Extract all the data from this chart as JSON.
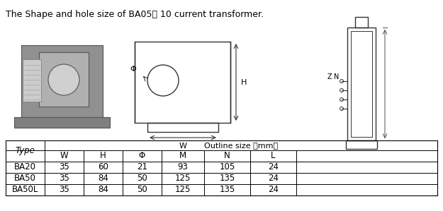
{
  "title": "The Shape and hole size of BA05， 10 current transformer.",
  "table_header_row1_label": "Type",
  "table_header_row1_right": "Outline size （mm）",
  "table_header_row2": [
    "W",
    "H",
    "Φ",
    "M",
    "N",
    "L"
  ],
  "table_rows": [
    [
      "BA20",
      "35",
      "60",
      "21",
      "93",
      "105",
      "24"
    ],
    [
      "BA50",
      "35",
      "84",
      "50",
      "125",
      "135",
      "24"
    ],
    [
      "BA50L",
      "35",
      "84",
      "50",
      "125",
      "135",
      "24"
    ]
  ],
  "bg_color": "#ffffff",
  "text_color": "#000000",
  "table_line_color": "#000000",
  "diagram_line_color": "#333333"
}
